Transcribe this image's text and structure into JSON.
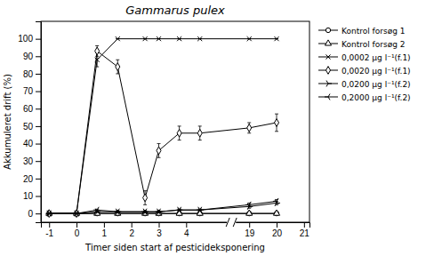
{
  "chart_data": {
    "type": "line",
    "title": "Gammarus pulex",
    "xlabel": "Timer siden start af pesticideksponering",
    "ylabel": "Akkumuleret drift (%)",
    "x": [
      -1,
      0,
      0.75,
      1.5,
      2.5,
      3,
      3.75,
      4.5,
      19,
      20
    ],
    "xlim": [
      -1.3,
      21.2
    ],
    "xticks": [
      -1,
      0,
      1,
      2,
      3,
      4,
      19,
      20,
      21
    ],
    "ylim": [
      -5,
      110
    ],
    "yticks": [
      0,
      10,
      20,
      30,
      40,
      50,
      60,
      70,
      80,
      90,
      100
    ],
    "grid": false,
    "legend": "right",
    "series": [
      {
        "name": "Kontrol forsøg 1",
        "color": "black",
        "marker": "circle",
        "line_style": "solid",
        "values": [
          0,
          0,
          0,
          0,
          0,
          0,
          0,
          0,
          0,
          0
        ],
        "errors": [
          0,
          0,
          0,
          0,
          0,
          0,
          0,
          0,
          0,
          0
        ]
      },
      {
        "name": "Kontrol forsøg 2",
        "color": "black",
        "marker": "triangle",
        "line_style": "solid",
        "values": [
          0,
          0,
          0,
          0,
          0,
          0,
          0,
          0,
          0,
          0
        ],
        "errors": [
          0,
          0,
          0,
          0,
          0,
          0,
          0,
          0,
          0,
          0
        ]
      },
      {
        "name": "0,0002 µg l⁻¹(f.1)",
        "color": "black",
        "marker": "x",
        "line_style": "solid",
        "values": [
          0,
          0,
          88,
          100,
          100,
          100,
          100,
          100,
          100,
          100
        ],
        "errors": [
          0,
          0,
          4,
          0,
          0,
          0,
          0,
          0,
          0,
          0
        ]
      },
      {
        "name": "0,0020 µg l⁻¹(f.1)",
        "color": "black",
        "marker": "diamond",
        "line_style": "solid",
        "values": [
          0,
          0,
          93,
          84,
          9,
          36,
          46,
          46,
          49,
          52
        ],
        "errors": [
          0,
          0.5,
          3,
          4,
          4,
          4,
          4,
          4,
          3,
          5
        ]
      },
      {
        "name": "0,0200 µg l⁻¹(f.2)",
        "color": "black",
        "marker": "tri_right",
        "line_style": "solid",
        "values": [
          0,
          0,
          1,
          1,
          1,
          1,
          2,
          2,
          4,
          6
        ],
        "errors": [
          0,
          0,
          0.5,
          0.5,
          0.5,
          0.5,
          0.5,
          0.5,
          1,
          1
        ]
      },
      {
        "name": "0,2000 µg l⁻¹(f.2)",
        "color": "black",
        "marker": "tri_left",
        "line_style": "solid",
        "values": [
          0,
          0,
          2,
          1,
          1,
          1,
          2,
          2,
          5,
          7
        ],
        "errors": [
          0,
          0,
          0.5,
          0.5,
          0.5,
          0.5,
          0.5,
          0.5,
          1,
          1
        ]
      }
    ]
  }
}
